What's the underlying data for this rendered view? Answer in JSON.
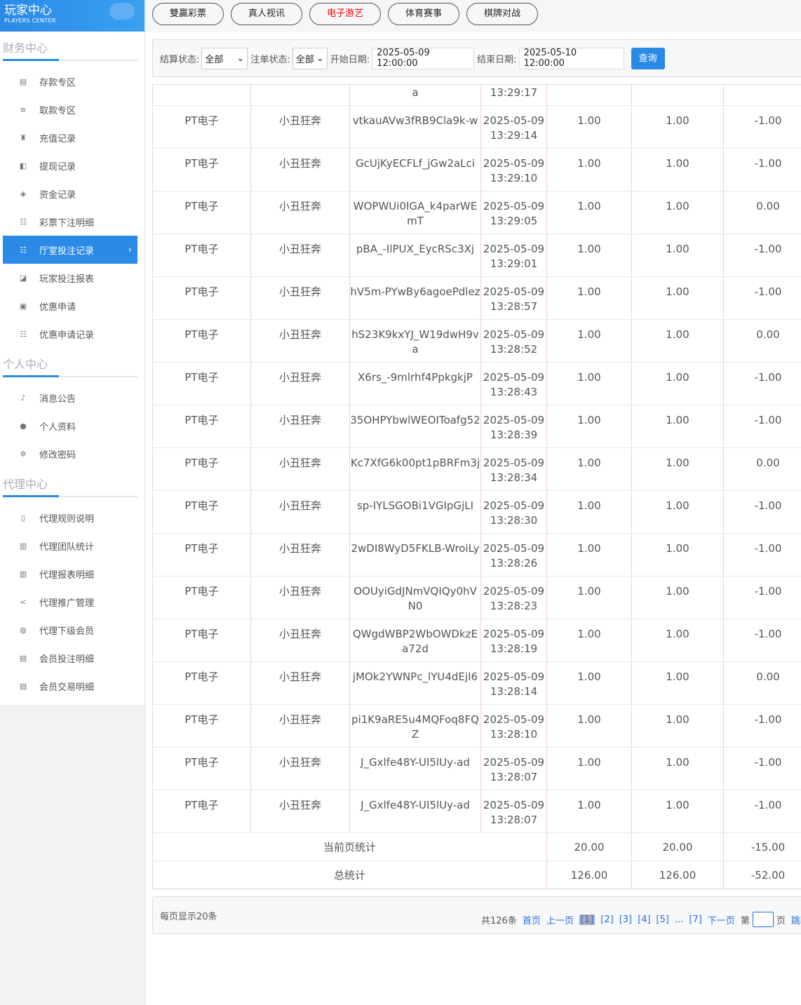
{
  "logo": {
    "title": "玩家中心",
    "subtitle": "PLAYERS CENTER"
  },
  "sidebar": [
    {
      "title": "财务中心",
      "items": [
        {
          "label": "存款专区",
          "icon": "calculator-icon"
        },
        {
          "label": "取款专区",
          "icon": "cash-icon"
        },
        {
          "label": "充值记录",
          "icon": "bag-icon"
        },
        {
          "label": "提现记录",
          "icon": "withdraw-icon"
        },
        {
          "label": "资金记录",
          "icon": "money-icon"
        },
        {
          "label": "彩票下注明细",
          "icon": "list-icon"
        },
        {
          "label": "厅室投注记录",
          "icon": "list-icon",
          "active": true
        },
        {
          "label": "玩家投注报表",
          "icon": "chart-icon"
        },
        {
          "label": "优惠申请",
          "icon": "gift-icon"
        },
        {
          "label": "优惠申请记录",
          "icon": "list-icon"
        }
      ]
    },
    {
      "title": "个人中心",
      "items": [
        {
          "label": "消息公告",
          "icon": "bell-icon"
        },
        {
          "label": "个人资料",
          "icon": "user-icon"
        },
        {
          "label": "修改密码",
          "icon": "gear-icon"
        }
      ]
    },
    {
      "title": "代理中心",
      "items": [
        {
          "label": "代理规则说明",
          "icon": "file-icon"
        },
        {
          "label": "代理团队统计",
          "icon": "book-icon"
        },
        {
          "label": "代理报表明细",
          "icon": "book-icon"
        },
        {
          "label": "代理推广管理",
          "icon": "share-icon"
        },
        {
          "label": "代理下级会员",
          "icon": "users-icon"
        },
        {
          "label": "会员投注明细",
          "icon": "doc-icon"
        },
        {
          "label": "会员交易明细",
          "icon": "doc-icon"
        }
      ]
    }
  ],
  "top_tabs": [
    {
      "label": "雙贏彩票"
    },
    {
      "label": "真人视讯"
    },
    {
      "label": "电子游艺",
      "active": true
    },
    {
      "label": "体育赛事"
    },
    {
      "label": "棋牌对战"
    }
  ],
  "filter": {
    "settle_label": "结算状态:",
    "settle_value": "全部",
    "cancel_label": "注单状态:",
    "cancel_value": "全部",
    "start_label": "开始日期:",
    "start_value": "2025-05-09 12:00:00",
    "end_label": "结束日期:",
    "end_value": "2025-05-10 12:00:00",
    "query": "查询"
  },
  "partial_row": [
    "",
    "",
    "a",
    "13:29:17",
    "",
    "",
    ""
  ],
  "rows": [
    [
      "PT电子",
      "小丑狂奔",
      "vtkauAVw3fRB9Cla9k-w",
      "2025-05-09 13:29:14",
      "1.00",
      "1.00",
      "-1.00"
    ],
    [
      "PT电子",
      "小丑狂奔",
      "GcUjKyECFLf_jGw2aLci",
      "2025-05-09 13:29:10",
      "1.00",
      "1.00",
      "-1.00"
    ],
    [
      "PT电子",
      "小丑狂奔",
      "WOPWUi0IGA_k4parWEmT",
      "2025-05-09 13:29:05",
      "1.00",
      "1.00",
      "0.00"
    ],
    [
      "PT电子",
      "小丑狂奔",
      "pBA_-IlPUX_EycRSc3Xj",
      "2025-05-09 13:29:01",
      "1.00",
      "1.00",
      "-1.00"
    ],
    [
      "PT电子",
      "小丑狂奔",
      "hV5m-PYwBy6agoePdlez",
      "2025-05-09 13:28:57",
      "1.00",
      "1.00",
      "-1.00"
    ],
    [
      "PT电子",
      "小丑狂奔",
      "hS23K9kxYJ_W19dwH9va",
      "2025-05-09 13:28:52",
      "1.00",
      "1.00",
      "0.00"
    ],
    [
      "PT电子",
      "小丑狂奔",
      "X6rs_-9mlrhf4PpkgkjP",
      "2025-05-09 13:28:43",
      "1.00",
      "1.00",
      "-1.00"
    ],
    [
      "PT电子",
      "小丑狂奔",
      "35OHPYbwlWEOIToafg52",
      "2025-05-09 13:28:39",
      "1.00",
      "1.00",
      "-1.00"
    ],
    [
      "PT电子",
      "小丑狂奔",
      "Kc7XfG6k00pt1pBRFm3j",
      "2025-05-09 13:28:34",
      "1.00",
      "1.00",
      "0.00"
    ],
    [
      "PT电子",
      "小丑狂奔",
      "sp-IYLSGOBi1VGIpGjLI",
      "2025-05-09 13:28:30",
      "1.00",
      "1.00",
      "-1.00"
    ],
    [
      "PT电子",
      "小丑狂奔",
      "2wDI8WyD5FKLB-WroiLy",
      "2025-05-09 13:28:26",
      "1.00",
      "1.00",
      "-1.00"
    ],
    [
      "PT电子",
      "小丑狂奔",
      "OOUyiGdJNmVQIQy0hVN0",
      "2025-05-09 13:28:23",
      "1.00",
      "1.00",
      "-1.00"
    ],
    [
      "PT电子",
      "小丑狂奔",
      "QWgdWBP2WbOWDkzEa72d",
      "2025-05-09 13:28:19",
      "1.00",
      "1.00",
      "-1.00"
    ],
    [
      "PT电子",
      "小丑狂奔",
      "jMOk2YWNPc_lYU4dEjI6",
      "2025-05-09 13:28:14",
      "1.00",
      "1.00",
      "0.00"
    ],
    [
      "PT电子",
      "小丑狂奔",
      "pi1K9aRE5u4MQFoq8FQZ",
      "2025-05-09 13:28:10",
      "1.00",
      "1.00",
      "-1.00"
    ],
    [
      "PT电子",
      "小丑狂奔",
      "J_Gxlfe48Y-UI5lUy-ad",
      "2025-05-09 13:28:07",
      "1.00",
      "1.00",
      "-1.00"
    ],
    [
      "PT电子",
      "小丑狂奔",
      "J_Gxlfe48Y-UI5lUy-ad",
      "2025-05-09 13:28:07",
      "1.00",
      "1.00",
      "-1.00"
    ]
  ],
  "summary": [
    {
      "label": "当前页统计",
      "v1": "20.00",
      "v2": "20.00",
      "v3": "-15.00"
    },
    {
      "label": "总统计",
      "v1": "126.00",
      "v2": "126.00",
      "v3": "-52.00"
    }
  ],
  "pager": {
    "per_page": "每页显示20条",
    "total": "共126条",
    "first": "首页",
    "prev": "上一页",
    "pages": [
      "[1]",
      "[2]",
      "[3]",
      "[4]",
      "[5]"
    ],
    "ellipsis": "...",
    "last_page": "[7]",
    "next": "下一页",
    "goto_prefix": "第",
    "goto_suffix": "页",
    "jump": "跳转"
  },
  "colors": {
    "accent": "#2a8ae6",
    "active_tab": "#ff0000",
    "link": "#2a6ee0"
  }
}
